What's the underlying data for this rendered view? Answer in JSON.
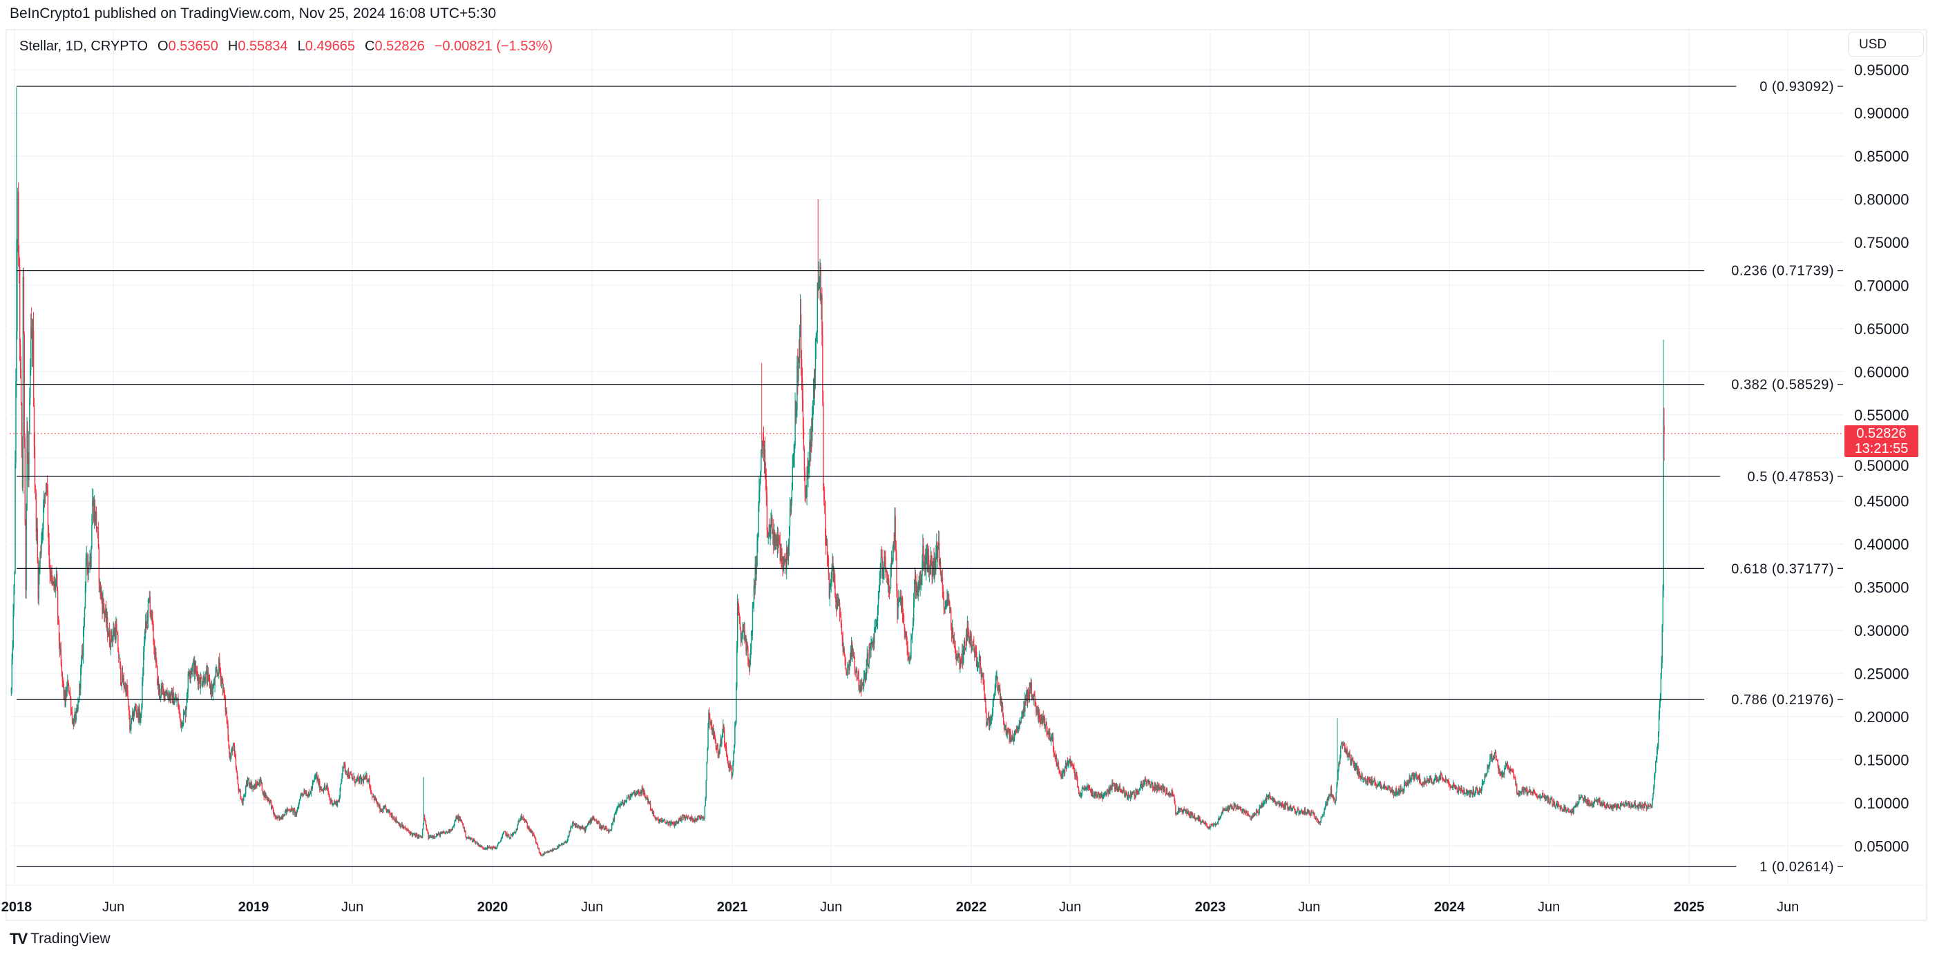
{
  "header": {
    "published": "BeInCrypto1 published on TradingView.com, Nov 25, 2024 16:08 UTC+5:30"
  },
  "legend": {
    "symbol": "Stellar, 1D, CRYPTO",
    "o_label": "O",
    "o": "0.53650",
    "h_label": "H",
    "h": "0.55834",
    "l_label": "L",
    "l": "0.49665",
    "c_label": "C",
    "c": "0.52826",
    "change": "−0.00821 (−1.53%)"
  },
  "currency_button": "USD",
  "price_tag": {
    "price": "0.52826",
    "countdown": "13:21:55"
  },
  "footer": {
    "logo_mark": "TV",
    "brand": "TradingView"
  },
  "colors": {
    "up": "#089981",
    "down": "#f23645",
    "fib": "#131722",
    "grid": "#f0f3fa"
  },
  "chart_data": {
    "type": "candlestick",
    "title": "Stellar, 1D, CRYPTO",
    "ylim": [
      0.02,
      0.96
    ],
    "y_ticks": [
      "0.05000",
      "0.10000",
      "0.15000",
      "0.20000",
      "0.25000",
      "0.30000",
      "0.35000",
      "0.40000",
      "0.45000",
      "0.50000",
      "0.55000",
      "0.60000",
      "0.65000",
      "0.70000",
      "0.75000",
      "0.80000",
      "0.85000",
      "0.90000",
      "0.95000"
    ],
    "x_ticks": [
      {
        "label": "2018",
        "day": 0,
        "year": true
      },
      {
        "label": "Jun",
        "day": 151
      },
      {
        "label": "2019",
        "day": 365,
        "year": true
      },
      {
        "label": "Jun",
        "day": 516
      },
      {
        "label": "2020",
        "day": 730,
        "year": true
      },
      {
        "label": "Jun",
        "day": 882
      },
      {
        "label": "2021",
        "day": 1096,
        "year": true
      },
      {
        "label": "Jun",
        "day": 1247
      },
      {
        "label": "2022",
        "day": 1461,
        "year": true
      },
      {
        "label": "Jun",
        "day": 1612
      },
      {
        "label": "2023",
        "day": 1826,
        "year": true
      },
      {
        "label": "Jun",
        "day": 1977
      },
      {
        "label": "2024",
        "day": 2191,
        "year": true
      },
      {
        "label": "Jun",
        "day": 2343
      },
      {
        "label": "2025",
        "day": 2557,
        "year": true
      },
      {
        "label": "Jun",
        "day": 2708
      }
    ],
    "x_unit": "days since 2018-01-01",
    "fib_levels": [
      {
        "ratio": "0",
        "price": 0.93092,
        "label": "0 (0.93092)"
      },
      {
        "ratio": "0.236",
        "price": 0.71739,
        "label": "0.236 (0.71739)"
      },
      {
        "ratio": "0.382",
        "price": 0.58529,
        "label": "0.382 (0.58529)"
      },
      {
        "ratio": "0.5",
        "price": 0.47853,
        "label": "0.5 (0.47853)"
      },
      {
        "ratio": "0.618",
        "price": 0.37177,
        "label": "0.618 (0.37177)"
      },
      {
        "ratio": "0.786",
        "price": 0.21976,
        "label": "0.786 (0.21976)"
      },
      {
        "ratio": "1",
        "price": 0.02614,
        "label": "1 (0.02614)"
      }
    ],
    "last_price": 0.52826,
    "last_candle": {
      "day": 2519,
      "open": 0.5365,
      "high": 0.55834,
      "low": 0.49665,
      "close": 0.52826
    },
    "close_anchors": [
      [
        -5,
        0.229
      ],
      [
        0,
        0.373
      ],
      [
        2,
        0.59
      ],
      [
        5,
        0.791
      ],
      [
        7,
        0.698
      ],
      [
        9,
        0.59
      ],
      [
        12,
        0.469
      ],
      [
        13,
        0.716
      ],
      [
        17,
        0.349
      ],
      [
        19,
        0.53
      ],
      [
        21,
        0.469
      ],
      [
        25,
        0.638
      ],
      [
        28,
        0.632
      ],
      [
        31,
        0.469
      ],
      [
        34,
        0.409
      ],
      [
        36,
        0.349
      ],
      [
        41,
        0.409
      ],
      [
        46,
        0.457
      ],
      [
        49,
        0.481
      ],
      [
        53,
        0.379
      ],
      [
        58,
        0.349
      ],
      [
        64,
        0.355
      ],
      [
        67,
        0.301
      ],
      [
        72,
        0.247
      ],
      [
        77,
        0.217
      ],
      [
        82,
        0.241
      ],
      [
        89,
        0.192
      ],
      [
        96,
        0.205
      ],
      [
        104,
        0.277
      ],
      [
        109,
        0.373
      ],
      [
        116,
        0.385
      ],
      [
        119,
        0.451
      ],
      [
        126,
        0.421
      ],
      [
        130,
        0.349
      ],
      [
        138,
        0.319
      ],
      [
        145,
        0.289
      ],
      [
        155,
        0.301
      ],
      [
        162,
        0.247
      ],
      [
        172,
        0.229
      ],
      [
        176,
        0.186
      ],
      [
        184,
        0.21
      ],
      [
        193,
        0.198
      ],
      [
        198,
        0.289
      ],
      [
        206,
        0.337
      ],
      [
        213,
        0.283
      ],
      [
        220,
        0.229
      ],
      [
        230,
        0.229
      ],
      [
        239,
        0.223
      ],
      [
        249,
        0.217
      ],
      [
        254,
        0.192
      ],
      [
        261,
        0.205
      ],
      [
        266,
        0.253
      ],
      [
        273,
        0.259
      ],
      [
        283,
        0.241
      ],
      [
        293,
        0.247
      ],
      [
        302,
        0.229
      ],
      [
        312,
        0.259
      ],
      [
        317,
        0.241
      ],
      [
        324,
        0.198
      ],
      [
        329,
        0.15
      ],
      [
        334,
        0.168
      ],
      [
        341,
        0.12
      ],
      [
        348,
        0.099
      ],
      [
        356,
        0.126
      ],
      [
        365,
        0.117
      ],
      [
        375,
        0.126
      ],
      [
        380,
        0.111
      ],
      [
        390,
        0.102
      ],
      [
        397,
        0.084
      ],
      [
        404,
        0.081
      ],
      [
        414,
        0.09
      ],
      [
        421,
        0.093
      ],
      [
        431,
        0.087
      ],
      [
        436,
        0.108
      ],
      [
        443,
        0.114
      ],
      [
        450,
        0.108
      ],
      [
        460,
        0.132
      ],
      [
        467,
        0.117
      ],
      [
        477,
        0.117
      ],
      [
        482,
        0.102
      ],
      [
        491,
        0.099
      ],
      [
        496,
        0.105
      ],
      [
        501,
        0.144
      ],
      [
        511,
        0.132
      ],
      [
        520,
        0.126
      ],
      [
        530,
        0.126
      ],
      [
        540,
        0.129
      ],
      [
        545,
        0.111
      ],
      [
        552,
        0.102
      ],
      [
        559,
        0.09
      ],
      [
        566,
        0.093
      ],
      [
        578,
        0.084
      ],
      [
        588,
        0.075
      ],
      [
        598,
        0.069
      ],
      [
        608,
        0.063
      ],
      [
        622,
        0.06
      ],
      [
        625,
        0.084
      ],
      [
        632,
        0.06
      ],
      [
        646,
        0.063
      ],
      [
        661,
        0.066
      ],
      [
        670,
        0.072
      ],
      [
        675,
        0.084
      ],
      [
        683,
        0.078
      ],
      [
        690,
        0.06
      ],
      [
        700,
        0.057
      ],
      [
        714,
        0.048
      ],
      [
        736,
        0.048
      ],
      [
        748,
        0.066
      ],
      [
        755,
        0.06
      ],
      [
        765,
        0.066
      ],
      [
        774,
        0.087
      ],
      [
        784,
        0.072
      ],
      [
        794,
        0.06
      ],
      [
        803,
        0.039
      ],
      [
        813,
        0.042
      ],
      [
        828,
        0.048
      ],
      [
        842,
        0.054
      ],
      [
        852,
        0.075
      ],
      [
        871,
        0.069
      ],
      [
        883,
        0.084
      ],
      [
        895,
        0.072
      ],
      [
        910,
        0.066
      ],
      [
        920,
        0.096
      ],
      [
        929,
        0.099
      ],
      [
        944,
        0.111
      ],
      [
        958,
        0.114
      ],
      [
        968,
        0.102
      ],
      [
        978,
        0.081
      ],
      [
        992,
        0.078
      ],
      [
        1007,
        0.075
      ],
      [
        1021,
        0.084
      ],
      [
        1036,
        0.081
      ],
      [
        1053,
        0.084
      ],
      [
        1055,
        0.108
      ],
      [
        1060,
        0.205
      ],
      [
        1067,
        0.18
      ],
      [
        1075,
        0.156
      ],
      [
        1082,
        0.186
      ],
      [
        1089,
        0.15
      ],
      [
        1096,
        0.132
      ],
      [
        1101,
        0.198
      ],
      [
        1104,
        0.325
      ],
      [
        1109,
        0.289
      ],
      [
        1113,
        0.307
      ],
      [
        1118,
        0.277
      ],
      [
        1123,
        0.259
      ],
      [
        1128,
        0.337
      ],
      [
        1133,
        0.385
      ],
      [
        1138,
        0.469
      ],
      [
        1141,
        0.518
      ],
      [
        1145,
        0.493
      ],
      [
        1150,
        0.409
      ],
      [
        1155,
        0.421
      ],
      [
        1159,
        0.409
      ],
      [
        1167,
        0.397
      ],
      [
        1176,
        0.373
      ],
      [
        1181,
        0.397
      ],
      [
        1187,
        0.457
      ],
      [
        1191,
        0.53
      ],
      [
        1196,
        0.602
      ],
      [
        1200,
        0.65
      ],
      [
        1204,
        0.53
      ],
      [
        1208,
        0.457
      ],
      [
        1213,
        0.493
      ],
      [
        1217,
        0.53
      ],
      [
        1222,
        0.602
      ],
      [
        1227,
        0.71
      ],
      [
        1231,
        0.698
      ],
      [
        1233,
        0.65
      ],
      [
        1235,
        0.469
      ],
      [
        1239,
        0.409
      ],
      [
        1244,
        0.349
      ],
      [
        1249,
        0.373
      ],
      [
        1254,
        0.337
      ],
      [
        1259,
        0.325
      ],
      [
        1263,
        0.301
      ],
      [
        1268,
        0.259
      ],
      [
        1273,
        0.253
      ],
      [
        1278,
        0.283
      ],
      [
        1285,
        0.253
      ],
      [
        1293,
        0.229
      ],
      [
        1297,
        0.241
      ],
      [
        1302,
        0.265
      ],
      [
        1309,
        0.283
      ],
      [
        1317,
        0.307
      ],
      [
        1322,
        0.379
      ],
      [
        1329,
        0.373
      ],
      [
        1336,
        0.349
      ],
      [
        1344,
        0.421
      ],
      [
        1348,
        0.325
      ],
      [
        1355,
        0.331
      ],
      [
        1363,
        0.277
      ],
      [
        1368,
        0.271
      ],
      [
        1375,
        0.355
      ],
      [
        1382,
        0.349
      ],
      [
        1387,
        0.385
      ],
      [
        1394,
        0.379
      ],
      [
        1404,
        0.373
      ],
      [
        1410,
        0.397
      ],
      [
        1414,
        0.367
      ],
      [
        1418,
        0.337
      ],
      [
        1428,
        0.331
      ],
      [
        1433,
        0.289
      ],
      [
        1440,
        0.265
      ],
      [
        1448,
        0.271
      ],
      [
        1455,
        0.301
      ],
      [
        1462,
        0.283
      ],
      [
        1469,
        0.265
      ],
      [
        1473,
        0.265
      ],
      [
        1480,
        0.241
      ],
      [
        1484,
        0.192
      ],
      [
        1492,
        0.198
      ],
      [
        1499,
        0.247
      ],
      [
        1506,
        0.217
      ],
      [
        1514,
        0.18
      ],
      [
        1525,
        0.174
      ],
      [
        1536,
        0.192
      ],
      [
        1543,
        0.217
      ],
      [
        1551,
        0.235
      ],
      [
        1562,
        0.205
      ],
      [
        1573,
        0.192
      ],
      [
        1584,
        0.174
      ],
      [
        1592,
        0.144
      ],
      [
        1599,
        0.132
      ],
      [
        1610,
        0.15
      ],
      [
        1621,
        0.132
      ],
      [
        1625,
        0.108
      ],
      [
        1636,
        0.12
      ],
      [
        1647,
        0.111
      ],
      [
        1662,
        0.108
      ],
      [
        1677,
        0.12
      ],
      [
        1688,
        0.117
      ],
      [
        1699,
        0.108
      ],
      [
        1714,
        0.111
      ],
      [
        1725,
        0.126
      ],
      [
        1736,
        0.12
      ],
      [
        1747,
        0.117
      ],
      [
        1758,
        0.114
      ],
      [
        1769,
        0.111
      ],
      [
        1773,
        0.09
      ],
      [
        1788,
        0.09
      ],
      [
        1802,
        0.084
      ],
      [
        1814,
        0.078
      ],
      [
        1825,
        0.072
      ],
      [
        1836,
        0.078
      ],
      [
        1847,
        0.093
      ],
      [
        1862,
        0.096
      ],
      [
        1876,
        0.09
      ],
      [
        1888,
        0.084
      ],
      [
        1899,
        0.09
      ],
      [
        1913,
        0.108
      ],
      [
        1928,
        0.099
      ],
      [
        1943,
        0.096
      ],
      [
        1958,
        0.09
      ],
      [
        1973,
        0.09
      ],
      [
        1987,
        0.084
      ],
      [
        1993,
        0.078
      ],
      [
        2002,
        0.096
      ],
      [
        2010,
        0.114
      ],
      [
        2017,
        0.099
      ],
      [
        2020,
        0.129
      ],
      [
        2026,
        0.168
      ],
      [
        2039,
        0.15
      ],
      [
        2050,
        0.138
      ],
      [
        2061,
        0.126
      ],
      [
        2076,
        0.123
      ],
      [
        2091,
        0.12
      ],
      [
        2106,
        0.111
      ],
      [
        2121,
        0.117
      ],
      [
        2135,
        0.132
      ],
      [
        2150,
        0.123
      ],
      [
        2165,
        0.126
      ],
      [
        2180,
        0.132
      ],
      [
        2195,
        0.12
      ],
      [
        2209,
        0.114
      ],
      [
        2224,
        0.111
      ],
      [
        2239,
        0.117
      ],
      [
        2254,
        0.151
      ],
      [
        2261,
        0.157
      ],
      [
        2269,
        0.132
      ],
      [
        2280,
        0.144
      ],
      [
        2291,
        0.129
      ],
      [
        2295,
        0.111
      ],
      [
        2306,
        0.114
      ],
      [
        2320,
        0.111
      ],
      [
        2335,
        0.108
      ],
      [
        2350,
        0.099
      ],
      [
        2365,
        0.093
      ],
      [
        2380,
        0.09
      ],
      [
        2391,
        0.108
      ],
      [
        2406,
        0.099
      ],
      [
        2417,
        0.102
      ],
      [
        2431,
        0.096
      ],
      [
        2446,
        0.096
      ],
      [
        2461,
        0.099
      ],
      [
        2476,
        0.096
      ],
      [
        2491,
        0.096
      ],
      [
        2500,
        0.096
      ],
      [
        2505,
        0.138
      ],
      [
        2509,
        0.168
      ],
      [
        2513,
        0.229
      ],
      [
        2515,
        0.271
      ],
      [
        2517,
        0.349
      ],
      [
        2518,
        0.5365
      ]
    ],
    "high_spikes": [
      [
        3,
        0.93
      ],
      [
        1141,
        0.61
      ],
      [
        1200,
        0.69
      ],
      [
        1227,
        0.8
      ],
      [
        625,
        0.13
      ],
      [
        2020,
        0.198
      ],
      [
        2518,
        0.637
      ]
    ]
  }
}
